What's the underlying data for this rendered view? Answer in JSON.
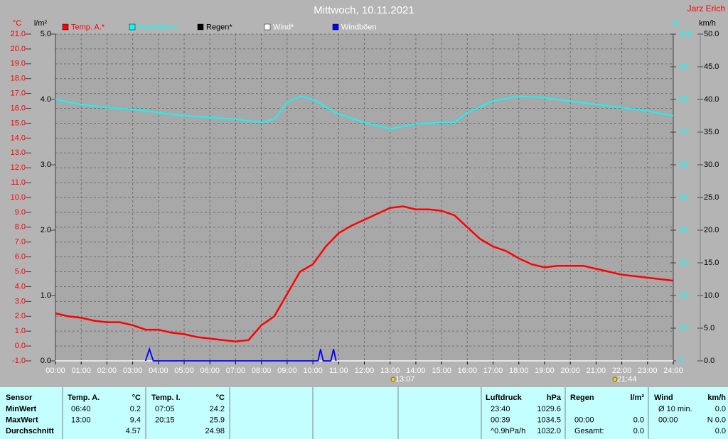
{
  "chart_data": {
    "type": "line",
    "title": "Mittwoch, 10.11.2021",
    "author": "Jarz Erich",
    "xlim": [
      0,
      24
    ],
    "xticks": [
      {
        "value": 0,
        "label": "00:00"
      },
      {
        "value": 1,
        "label": "01:00"
      },
      {
        "value": 2,
        "label": "02:00"
      },
      {
        "value": 3,
        "label": "03:00"
      },
      {
        "value": 4,
        "label": "04:00"
      },
      {
        "value": 5,
        "label": "05:00"
      },
      {
        "value": 6,
        "label": "06:00"
      },
      {
        "value": 7,
        "label": "07:00"
      },
      {
        "value": 8,
        "label": "08:00"
      },
      {
        "value": 9,
        "label": "09:00"
      },
      {
        "value": 10,
        "label": "10:00"
      },
      {
        "value": 11,
        "label": "11:00"
      },
      {
        "value": 12,
        "label": "12:00"
      },
      {
        "value": 13,
        "label": "13:00"
      },
      {
        "value": 14,
        "label": "14:00"
      },
      {
        "value": 15,
        "label": "15:00"
      },
      {
        "value": 16,
        "label": "16:00"
      },
      {
        "value": 17,
        "label": "17:00"
      },
      {
        "value": 18,
        "label": "18:00"
      },
      {
        "value": 19,
        "label": "19:00"
      },
      {
        "value": 20,
        "label": "20:00"
      },
      {
        "value": 21,
        "label": "21:00"
      },
      {
        "value": 22,
        "label": "22:00"
      },
      {
        "value": 23,
        "label": "23:00"
      },
      {
        "value": 24,
        "label": "24:00"
      }
    ],
    "grid": true,
    "axes": [
      {
        "label": "°C",
        "color": "#ff0000",
        "lim": [
          -1,
          21
        ],
        "ticks": [
          {
            "value": -1,
            "label": "-1.0"
          },
          {
            "value": 0,
            "label": "0.0"
          },
          {
            "value": 1,
            "label": "1.0"
          },
          {
            "value": 2,
            "label": "2.0"
          },
          {
            "value": 3,
            "label": "3.0"
          },
          {
            "value": 4,
            "label": "4.0"
          },
          {
            "value": 5,
            "label": "5.0"
          },
          {
            "value": 6,
            "label": "6.0"
          },
          {
            "value": 7,
            "label": "7.0"
          },
          {
            "value": 8,
            "label": "8.0"
          },
          {
            "value": 9,
            "label": "9.0"
          },
          {
            "value": 10,
            "label": "10.0"
          },
          {
            "value": 11,
            "label": "11.0"
          },
          {
            "value": 12,
            "label": "12.0"
          },
          {
            "value": 13,
            "label": "13.0"
          },
          {
            "value": 14,
            "label": "14.0"
          },
          {
            "value": 15,
            "label": "15.0"
          },
          {
            "value": 16,
            "label": "16.0"
          },
          {
            "value": 17,
            "label": "17.0"
          },
          {
            "value": 18,
            "label": "18.0"
          },
          {
            "value": 19,
            "label": "19.0"
          },
          {
            "value": 20,
            "label": "20.0"
          },
          {
            "value": 21,
            "label": "21.0"
          }
        ]
      },
      {
        "label": "l/m²",
        "color": "#000000",
        "lim": [
          0,
          5
        ],
        "ticks": [
          {
            "value": 0,
            "label": "0.0"
          },
          {
            "value": 1,
            "label": "1.0"
          },
          {
            "value": 2,
            "label": "2.0"
          },
          {
            "value": 3,
            "label": "3.0"
          },
          {
            "value": 4,
            "label": "4.0"
          },
          {
            "value": 5,
            "label": "5.0"
          }
        ]
      },
      {
        "label": "%",
        "color": "#00ffff",
        "lim": [
          0,
          100
        ],
        "ticks": [
          0,
          10,
          20,
          30,
          40,
          50,
          60,
          70,
          80,
          90,
          100
        ]
      },
      {
        "label": "km/h",
        "color": "#000000",
        "lim": [
          0,
          50
        ],
        "ticks": [
          {
            "value": 0,
            "label": "0.0"
          },
          {
            "value": 5,
            "label": "5.0"
          },
          {
            "value": 10,
            "label": "10.0"
          },
          {
            "value": 15,
            "label": "15.0"
          },
          {
            "value": 20,
            "label": "20.0"
          },
          {
            "value": 25,
            "label": "25.0"
          },
          {
            "value": 30,
            "label": "30.0"
          },
          {
            "value": 35,
            "label": "35.0"
          },
          {
            "value": 40,
            "label": "40.0"
          },
          {
            "value": 45,
            "label": "45.0"
          },
          {
            "value": 50,
            "label": "50.0"
          }
        ]
      }
    ],
    "series": [
      {
        "name": "Temp. A.*",
        "color": "#ff0000",
        "legend_text_color": "#ff0000",
        "axis": 0,
        "x": [
          0,
          0.5,
          1,
          1.5,
          2,
          2.5,
          3,
          3.5,
          4,
          4.5,
          5,
          5.5,
          6,
          6.5,
          7,
          7.5,
          8,
          8.5,
          9,
          9.5,
          10,
          10.5,
          11,
          11.5,
          12,
          12.5,
          13,
          13.5,
          14,
          14.5,
          15,
          15.5,
          16,
          16.5,
          17,
          17.5,
          18,
          18.5,
          19,
          19.5,
          20,
          20.5,
          21,
          21.5,
          22,
          22.5,
          23,
          23.5,
          24
        ],
        "values": [
          2.2,
          2.0,
          1.9,
          1.7,
          1.6,
          1.6,
          1.4,
          1.1,
          1.1,
          0.9,
          0.8,
          0.6,
          0.5,
          0.4,
          0.3,
          0.4,
          1.4,
          2.0,
          3.5,
          5.0,
          5.5,
          6.7,
          7.6,
          8.1,
          8.5,
          8.9,
          9.3,
          9.4,
          9.2,
          9.2,
          9.1,
          8.8,
          8.0,
          7.2,
          6.7,
          6.4,
          5.9,
          5.5,
          5.3,
          5.4,
          5.4,
          5.4,
          5.2,
          5.0,
          4.8,
          4.7,
          4.6,
          4.5,
          4.4
        ]
      },
      {
        "name": "Feuchte A.*",
        "color": "#00ffff",
        "legend_text_color": "#00ffff",
        "axis": 2,
        "x": [
          0,
          1,
          2,
          3,
          4,
          5,
          6,
          7,
          8,
          8.5,
          9,
          9.5,
          10,
          11,
          12,
          13,
          14,
          15,
          15.5,
          16,
          17,
          18,
          19,
          20,
          21,
          22,
          23,
          24
        ],
        "values": [
          80,
          78.5,
          77.5,
          77,
          76,
          75,
          74.5,
          74,
          73,
          74,
          79,
          81,
          80,
          75.5,
          73,
          71,
          72.5,
          73,
          73,
          76,
          79.5,
          81,
          80.5,
          79.5,
          78.5,
          77.5,
          76.5,
          75
        ]
      },
      {
        "name": "Regen*",
        "color": "#000000",
        "legend_text_color": "#000000",
        "axis": 1,
        "x": [
          0,
          24
        ],
        "values": [
          0,
          0
        ]
      },
      {
        "name": "Wind*",
        "color": "#ffffff",
        "legend_text_color": "#ffffff",
        "axis": 3,
        "x": [
          0,
          24
        ],
        "values": [
          0,
          0
        ]
      },
      {
        "name": "Windböen",
        "color": "#0000ff",
        "legend_text_color": "#ffffff",
        "axis": 3,
        "x": [
          3.5,
          3.65,
          3.8,
          10.2,
          10.3,
          10.4,
          10.7,
          10.8,
          10.9
        ],
        "values": [
          0,
          1.8,
          0,
          0,
          1.8,
          0,
          0,
          1.8,
          0
        ]
      }
    ],
    "annotations": [
      {
        "x": 13.1167,
        "label": "13:07"
      },
      {
        "x": 21.7333,
        "label": "21:44"
      }
    ]
  },
  "stats_table": {
    "header": [
      "Sensor",
      "Temp. A.",
      "°C",
      "Temp. I.",
      "°C",
      "Luftdruck",
      "hPa",
      "Regen",
      "l/m²",
      "Wind",
      "km/h"
    ],
    "rows": [
      [
        "MinWert",
        "06:40",
        "0.2",
        "07:05",
        "24.2",
        "23:40",
        "1029.6",
        "",
        "",
        "Ø 10 min.",
        "0.0"
      ],
      [
        "MaxWert",
        "13:00",
        "9.4",
        "20:15",
        "25.9",
        "00:39",
        "1034.5",
        "00:00",
        "0.0",
        "00:00",
        "N 0.0"
      ],
      [
        "Durchschnitt",
        "",
        "4.57",
        "",
        "24.98",
        "^0.9hPa/h",
        "1032.0",
        "Gesamt:",
        "0.0",
        "",
        "0.0"
      ]
    ]
  }
}
